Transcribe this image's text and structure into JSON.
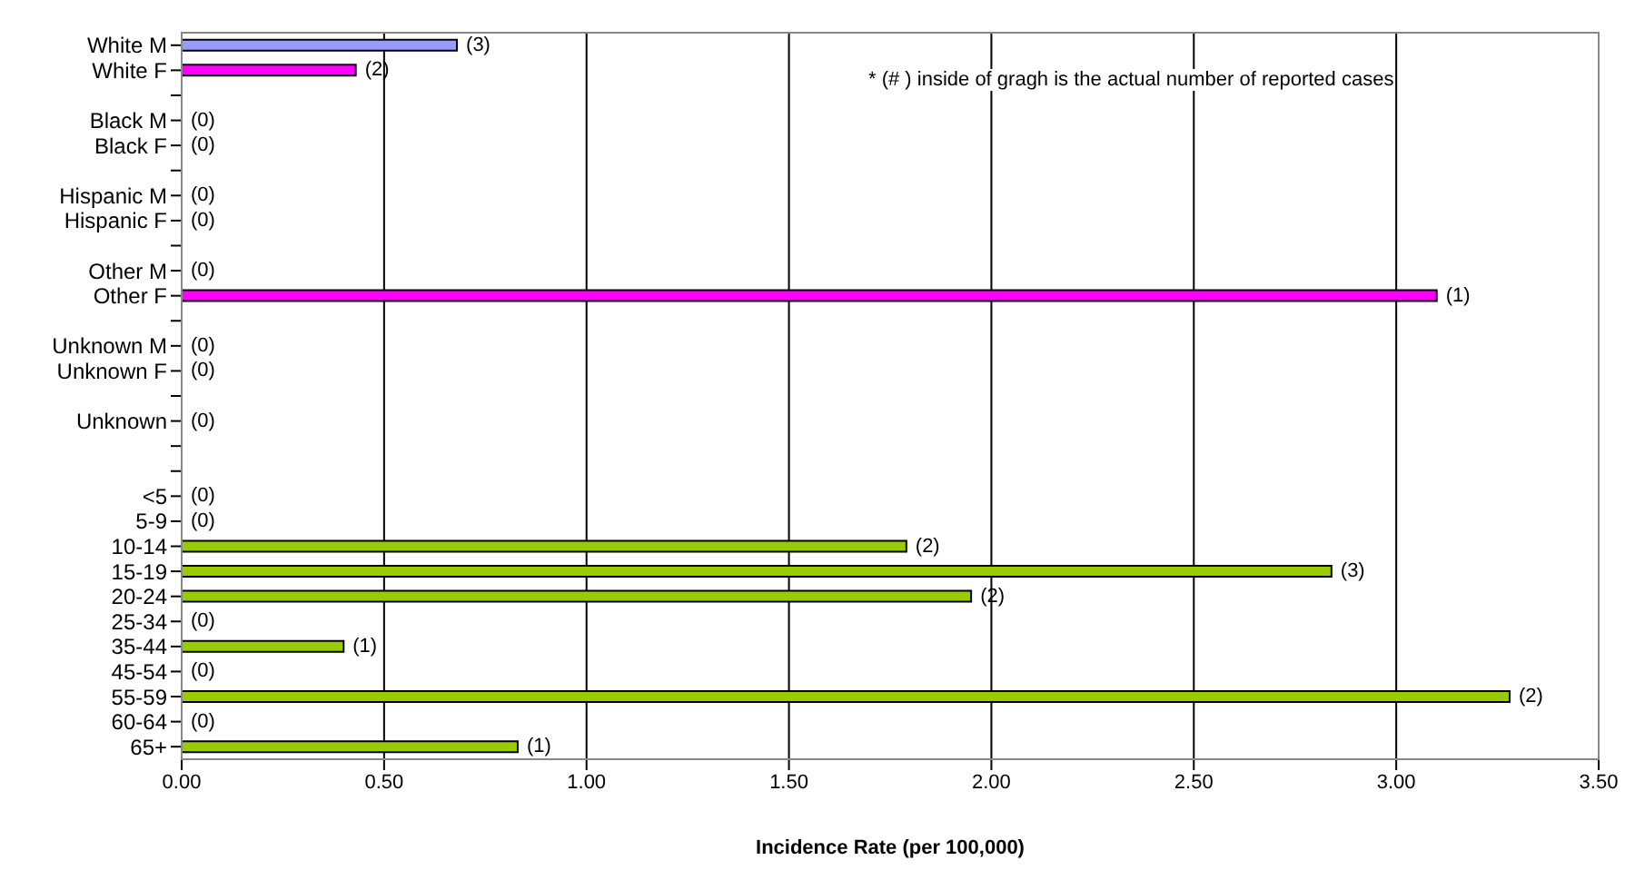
{
  "chart_data": {
    "type": "bar",
    "orientation": "horizontal",
    "xlabel": "Incidence Rate (per 100,000)",
    "annotations": [
      "* (# ) inside of gragh is the actual number of reported cases",
      {
        "text": "(3)",
        "x": 0.68,
        "y": "White M"
      },
      {
        "text": "(2)",
        "x": 0.43,
        "y": "White F"
      },
      {
        "text": "(0)",
        "x": 0,
        "y": "Black M"
      },
      {
        "text": "(0)",
        "x": 0,
        "y": "Black F"
      },
      {
        "text": "(0)",
        "x": 0,
        "y": "Hispanic M"
      },
      {
        "text": "(0)",
        "x": 0,
        "y": "Hispanic F"
      },
      {
        "text": "(0)",
        "x": 0,
        "y": "Other M"
      },
      {
        "text": "(1)",
        "x": 3.1,
        "y": "Other F"
      },
      {
        "text": "(0)",
        "x": 0,
        "y": "Unknown M"
      },
      {
        "text": "(0)",
        "x": 0,
        "y": "Unknown F"
      },
      {
        "text": "(0)",
        "x": 0,
        "y": "Unknown"
      },
      {
        "text": "(0)",
        "x": 0,
        "y": "<5"
      },
      {
        "text": "(0)",
        "x": 0,
        "y": "5-9"
      },
      {
        "text": "(2)",
        "x": 1.79,
        "y": "10-14"
      },
      {
        "text": "(3)",
        "x": 2.84,
        "y": "15-19"
      },
      {
        "text": "(2)",
        "x": 1.95,
        "y": "20-24"
      },
      {
        "text": "(0)",
        "x": 0,
        "y": "25-34"
      },
      {
        "text": "(1)",
        "x": 0.4,
        "y": "35-44"
      },
      {
        "text": "(0)",
        "x": 0,
        "y": "45-54"
      },
      {
        "text": "(2)",
        "x": 3.28,
        "y": "55-59"
      },
      {
        "text": "(0)",
        "x": 0,
        "y": "60-64"
      },
      {
        "text": "(1)",
        "x": 0.83,
        "y": "65+"
      }
    ],
    "categories": [
      "White M",
      "White F",
      null,
      "Black M",
      "Black F",
      null,
      "Hispanic M",
      "Hispanic F",
      null,
      "Other M",
      "Other F",
      null,
      "Unknown M",
      "Unknown F",
      null,
      "Unknown",
      null,
      null,
      "<5",
      "5-9",
      "10-14",
      "15-19",
      "20-24",
      "25-34",
      "35-44",
      "45-54",
      "55-59",
      "60-64",
      "65+"
    ],
    "values": [
      0.68,
      0.43,
      null,
      0,
      0,
      null,
      0,
      0,
      null,
      0,
      3.1,
      null,
      0,
      0,
      null,
      0,
      null,
      null,
      0,
      0,
      1.79,
      2.84,
      1.95,
      0,
      0.4,
      0,
      3.28,
      0,
      0.83
    ],
    "colors": [
      "#9999ff",
      "#ff00ff",
      null,
      "#9999ff",
      "#ff00ff",
      null,
      "#9999ff",
      "#ff00ff",
      null,
      "#9999ff",
      "#ff00ff",
      null,
      "#9999ff",
      "#ff00ff",
      null,
      "#99cc00",
      null,
      null,
      "#99cc00",
      "#99cc00",
      "#99cc00",
      "#99cc00",
      "#99cc00",
      "#99cc00",
      "#99cc00",
      "#99cc00",
      "#99cc00",
      "#99cc00",
      "#99cc00"
    ],
    "xlim": [
      0,
      3.5
    ],
    "xticks": [
      {
        "value": 0,
        "label": "0.00"
      },
      {
        "value": 0.5,
        "label": "0.50"
      },
      {
        "value": 1,
        "label": "1.00"
      },
      {
        "value": 1.5,
        "label": "1.50"
      },
      {
        "value": 2,
        "label": "2.00"
      },
      {
        "value": 2.5,
        "label": "2.50"
      },
      {
        "value": 3,
        "label": "3.00"
      },
      {
        "value": 3.5,
        "label": "3.50"
      }
    ],
    "grid": "x"
  }
}
